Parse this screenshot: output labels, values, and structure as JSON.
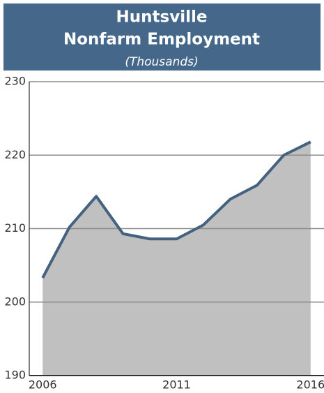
{
  "chart_data": {
    "type": "area",
    "title": [
      "Huntsville",
      "Nonfarm Employment"
    ],
    "subtitle": "(Thousands)",
    "x": [
      2006,
      2007,
      2008,
      2009,
      2010,
      2011,
      2012,
      2013,
      2014,
      2015,
      2016
    ],
    "values": [
      203.3,
      210.2,
      214.4,
      209.3,
      208.6,
      208.6,
      210.5,
      214.0,
      215.9,
      220.0,
      221.8
    ],
    "color": "#44617f",
    "fill": "#c0c0c0",
    "xlim": [
      2005.5,
      2016.5
    ],
    "xticks": [
      2006,
      2011,
      2016
    ],
    "ylim": [
      190,
      230
    ],
    "yticks": [
      190,
      200,
      210,
      220,
      230
    ],
    "grid": true
  }
}
